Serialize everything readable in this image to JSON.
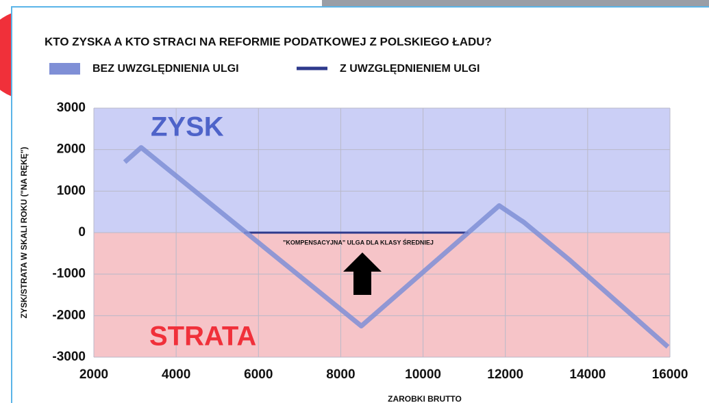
{
  "chart_data": {
    "type": "line",
    "title": "KTO ZYSKA A KTO STRACI NA REFORMIE PODATKOWEJ Z POLSKIEGO ŁADU?",
    "x_label": "ZAROBKI BRUTTO",
    "y_label": "ZYSK/STRATA W SKALI ROKU (\"NA RĘKĘ\")",
    "annotations": {
      "gain": "ZYSK",
      "loss": "STRATA",
      "relief": "\"KOMPENSACYJNA\" ULGA DLA KLASY ŚREDNIEJ"
    },
    "series": [
      {
        "name": "BEZ UWZGLĘDNIENIA ULGI",
        "color": "#7f8fd6",
        "x": [
          2750,
          3150,
          8500,
          11850,
          12450,
          13550,
          15950
        ],
        "values": [
          1700,
          2050,
          -2250,
          650,
          250,
          -650,
          -2750
        ]
      },
      {
        "name": "Z UWZGLĘDNIENIEM ULGI",
        "color": "#2e3a8c",
        "x": [
          5650,
          11100
        ],
        "values": [
          0,
          0
        ]
      }
    ],
    "xlim": [
      2000,
      16000
    ],
    "xticks": [
      2000,
      4000,
      6000,
      8000,
      10000,
      12000,
      14000,
      16000
    ],
    "ylim": [
      -3000,
      3000
    ],
    "yticks": [
      -3000,
      -2000,
      -1000,
      0,
      1000,
      2000,
      3000
    ],
    "grid": true
  }
}
